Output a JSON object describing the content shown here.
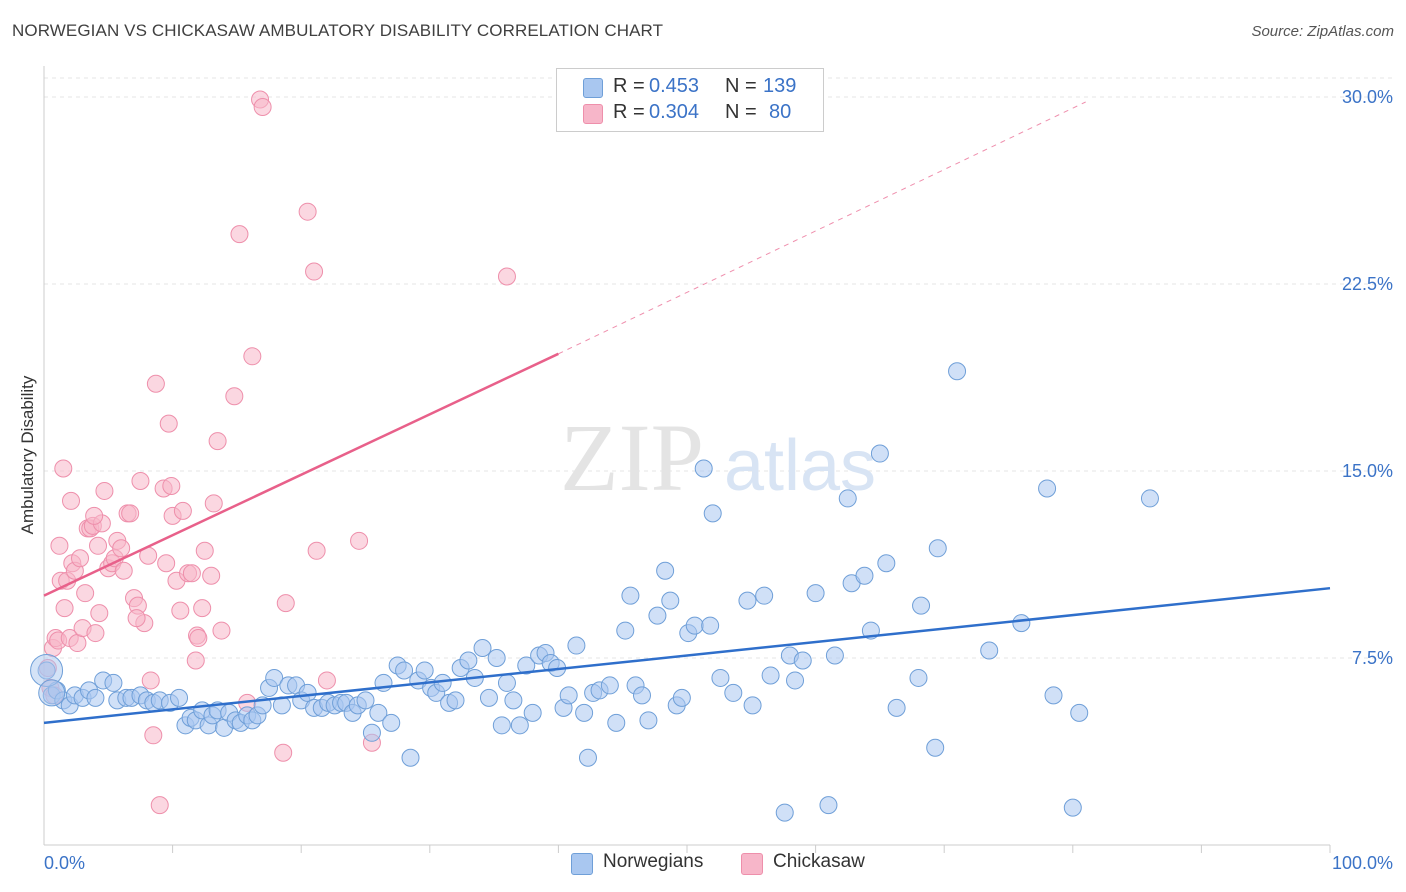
{
  "header": {
    "title": "NORWEGIAN VS CHICKASAW AMBULATORY DISABILITY CORRELATION CHART",
    "source": "Source: ZipAtlas.com"
  },
  "watermark": {
    "part1": "ZIP",
    "part2": "atlas"
  },
  "stats": {
    "rows": [
      {
        "r_label": "R =",
        "r_value": "0.453",
        "n_label": "N =",
        "n_value": "139",
        "color": "#a9c7f0"
      },
      {
        "r_label": "R =",
        "r_value": "0.304",
        "n_label": "N =",
        "n_value": "80",
        "color": "#f7b6c9"
      }
    ]
  },
  "legend": {
    "items": [
      {
        "label": "Norwegians",
        "color": "#a9c7f0"
      },
      {
        "label": "Chickasaw",
        "color": "#f7b6c9"
      }
    ]
  },
  "chart_data": {
    "type": "scatter",
    "title": "NORWEGIAN VS CHICKASAW AMBULATORY DISABILITY CORRELATION CHART",
    "xlabel": "",
    "ylabel": "Ambulatory Disability",
    "xlim": [
      0,
      100
    ],
    "ylim": [
      0,
      31
    ],
    "x_tick_labels": [
      "0.0%",
      "100.0%"
    ],
    "y_ticks": [
      7.5,
      15.0,
      22.5,
      30.0
    ],
    "y_tick_labels": [
      "7.5%",
      "15.0%",
      "22.5%",
      "30.0%"
    ],
    "grid": "horizontal-dashed",
    "legend_position": "bottom-center",
    "colors": {
      "norwegians_fill": "#a9c7f0",
      "norwegians_stroke": "#6f9fd8",
      "norwegians_line": "#2f6fcb",
      "chickasaw_fill": "#f7b6c9",
      "chickasaw_stroke": "#ee8fab",
      "chickasaw_line": "#e8608a",
      "tick_label": "#3b73c7"
    },
    "series": [
      {
        "name": "Norwegians",
        "trend": {
          "x": [
            0,
            100
          ],
          "y": [
            4.9,
            10.3
          ],
          "dashed_to": null
        },
        "points": [
          [
            0.2,
            7.0
          ],
          [
            0.6,
            6.0
          ],
          [
            1,
            6.2
          ],
          [
            1.5,
            5.8
          ],
          [
            2,
            5.6
          ],
          [
            2.4,
            6.0
          ],
          [
            3,
            5.9
          ],
          [
            3.5,
            6.2
          ],
          [
            4,
            5.9
          ],
          [
            4.6,
            6.6
          ],
          [
            5.4,
            6.5
          ],
          [
            5.7,
            5.8
          ],
          [
            6.4,
            5.9
          ],
          [
            6.8,
            5.9
          ],
          [
            7.5,
            6.0
          ],
          [
            8,
            5.8
          ],
          [
            8.5,
            5.7
          ],
          [
            9,
            5.8
          ],
          [
            9.8,
            5.7
          ],
          [
            10.5,
            5.9
          ],
          [
            11,
            4.8
          ],
          [
            11.4,
            5.1
          ],
          [
            11.8,
            5.0
          ],
          [
            12.3,
            5.4
          ],
          [
            12.8,
            4.8
          ],
          [
            13.1,
            5.2
          ],
          [
            13.5,
            5.4
          ],
          [
            14,
            4.7
          ],
          [
            14.4,
            5.3
          ],
          [
            14.9,
            5.0
          ],
          [
            15.3,
            4.9
          ],
          [
            15.8,
            5.2
          ],
          [
            16.2,
            5.0
          ],
          [
            16.6,
            5.2
          ],
          [
            17,
            5.6
          ],
          [
            17.5,
            6.3
          ],
          [
            17.9,
            6.7
          ],
          [
            18.5,
            5.6
          ],
          [
            19,
            6.4
          ],
          [
            19.6,
            6.4
          ],
          [
            20,
            5.8
          ],
          [
            20.5,
            6.1
          ],
          [
            21,
            5.5
          ],
          [
            21.6,
            5.5
          ],
          [
            22.1,
            5.7
          ],
          [
            22.6,
            5.6
          ],
          [
            23.1,
            5.7
          ],
          [
            23.5,
            5.7
          ],
          [
            24,
            5.3
          ],
          [
            24.4,
            5.6
          ],
          [
            25,
            5.8
          ],
          [
            25.5,
            4.5
          ],
          [
            26,
            5.3
          ],
          [
            26.4,
            6.5
          ],
          [
            27,
            4.9
          ],
          [
            27.5,
            7.2
          ],
          [
            28,
            7.0
          ],
          [
            28.5,
            3.5
          ],
          [
            29.1,
            6.6
          ],
          [
            29.6,
            7.0
          ],
          [
            30.1,
            6.3
          ],
          [
            30.5,
            6.1
          ],
          [
            31,
            6.5
          ],
          [
            31.5,
            5.7
          ],
          [
            32,
            5.8
          ],
          [
            32.4,
            7.1
          ],
          [
            33,
            7.4
          ],
          [
            33.5,
            6.7
          ],
          [
            34.1,
            7.9
          ],
          [
            34.6,
            5.9
          ],
          [
            35.2,
            7.5
          ],
          [
            35.6,
            4.8
          ],
          [
            36,
            6.5
          ],
          [
            36.5,
            5.8
          ],
          [
            37,
            4.8
          ],
          [
            37.5,
            7.2
          ],
          [
            38,
            5.3
          ],
          [
            38.5,
            7.6
          ],
          [
            39,
            7.7
          ],
          [
            39.4,
            7.3
          ],
          [
            39.9,
            7.1
          ],
          [
            40.4,
            5.5
          ],
          [
            40.8,
            6.0
          ],
          [
            41.4,
            8.0
          ],
          [
            42,
            5.3
          ],
          [
            42.3,
            3.5
          ],
          [
            42.7,
            6.1
          ],
          [
            43.2,
            6.2
          ],
          [
            44,
            6.4
          ],
          [
            44.5,
            4.9
          ],
          [
            45.2,
            8.6
          ],
          [
            45.6,
            10.0
          ],
          [
            46,
            6.4
          ],
          [
            46.5,
            6.0
          ],
          [
            47,
            5.0
          ],
          [
            47.7,
            9.2
          ],
          [
            48.3,
            11.0
          ],
          [
            48.7,
            9.8
          ],
          [
            49.2,
            5.6
          ],
          [
            49.6,
            5.9
          ],
          [
            50.1,
            8.5
          ],
          [
            50.6,
            8.8
          ],
          [
            51.3,
            15.1
          ],
          [
            51.8,
            8.8
          ],
          [
            52,
            13.3
          ],
          [
            52.6,
            6.7
          ],
          [
            53.6,
            6.1
          ],
          [
            54.7,
            9.8
          ],
          [
            55.1,
            5.6
          ],
          [
            56,
            10.0
          ],
          [
            56.5,
            6.8
          ],
          [
            57.6,
            1.3
          ],
          [
            58,
            7.6
          ],
          [
            58.4,
            6.6
          ],
          [
            59,
            7.4
          ],
          [
            60,
            10.1
          ],
          [
            61,
            1.6
          ],
          [
            61.5,
            7.6
          ],
          [
            62.5,
            13.9
          ],
          [
            62.8,
            10.5
          ],
          [
            63.8,
            10.8
          ],
          [
            64.3,
            8.6
          ],
          [
            65,
            15.7
          ],
          [
            65.5,
            11.3
          ],
          [
            66.3,
            5.5
          ],
          [
            68,
            6.7
          ],
          [
            68.2,
            9.6
          ],
          [
            69.3,
            3.9
          ],
          [
            69.5,
            11.9
          ],
          [
            71,
            19.0
          ],
          [
            73.5,
            7.8
          ],
          [
            76,
            8.9
          ],
          [
            78,
            14.3
          ],
          [
            78.5,
            6.0
          ],
          [
            80,
            1.5
          ],
          [
            80.5,
            5.3
          ],
          [
            86,
            13.9
          ]
        ]
      },
      {
        "name": "Chickasaw",
        "trend": {
          "x": [
            0,
            40
          ],
          "y": [
            10.0,
            19.7
          ],
          "dashed_to": [
            81,
            29.8
          ]
        },
        "points": [
          [
            0.3,
            7.1
          ],
          [
            0.5,
            6.3
          ],
          [
            0.7,
            7.9
          ],
          [
            0.9,
            8.3
          ],
          [
            1.1,
            8.2
          ],
          [
            1.3,
            10.6
          ],
          [
            1.6,
            9.5
          ],
          [
            1.8,
            10.6
          ],
          [
            2,
            8.3
          ],
          [
            2.2,
            11.3
          ],
          [
            2.4,
            11.0
          ],
          [
            2.6,
            8.1
          ],
          [
            2.8,
            11.5
          ],
          [
            3,
            8.7
          ],
          [
            3.2,
            10.1
          ],
          [
            3.4,
            12.7
          ],
          [
            3.6,
            12.7
          ],
          [
            3.8,
            12.8
          ],
          [
            4,
            8.5
          ],
          [
            4.2,
            12.0
          ],
          [
            4.3,
            9.3
          ],
          [
            4.5,
            12.9
          ],
          [
            4.7,
            14.2
          ],
          [
            5,
            11.1
          ],
          [
            5.3,
            11.3
          ],
          [
            5.5,
            11.5
          ],
          [
            5.7,
            12.2
          ],
          [
            6,
            11.9
          ],
          [
            6.2,
            11.0
          ],
          [
            6.5,
            13.3
          ],
          [
            6.7,
            13.3
          ],
          [
            7,
            9.9
          ],
          [
            7.3,
            9.6
          ],
          [
            7.5,
            14.6
          ],
          [
            7.8,
            8.9
          ],
          [
            8.1,
            11.6
          ],
          [
            8.3,
            6.6
          ],
          [
            8.5,
            4.4
          ],
          [
            8.7,
            18.5
          ],
          [
            9,
            1.6
          ],
          [
            9.3,
            14.3
          ],
          [
            9.5,
            11.3
          ],
          [
            9.7,
            16.9
          ],
          [
            10,
            13.2
          ],
          [
            10.3,
            10.6
          ],
          [
            10.6,
            9.4
          ],
          [
            10.8,
            13.4
          ],
          [
            11.2,
            10.9
          ],
          [
            11.5,
            10.9
          ],
          [
            11.8,
            7.4
          ],
          [
            11.9,
            8.4
          ],
          [
            12,
            8.3
          ],
          [
            12.3,
            9.5
          ],
          [
            12.5,
            11.8
          ],
          [
            13,
            10.8
          ],
          [
            13.2,
            13.7
          ],
          [
            13.5,
            16.2
          ],
          [
            13.8,
            8.6
          ],
          [
            14.8,
            18.0
          ],
          [
            15.2,
            24.5
          ],
          [
            15.8,
            5.7
          ],
          [
            16.2,
            19.6
          ],
          [
            16.8,
            29.9
          ],
          [
            17,
            29.6
          ],
          [
            18.6,
            3.7
          ],
          [
            18.8,
            9.7
          ],
          [
            20.5,
            25.4
          ],
          [
            21,
            23.0
          ],
          [
            21.2,
            11.8
          ],
          [
            22,
            6.6
          ],
          [
            25.5,
            4.1
          ],
          [
            24.5,
            12.2
          ],
          [
            36,
            22.8
          ],
          [
            1.5,
            15.1
          ],
          [
            2.1,
            13.8
          ],
          [
            0.8,
            6.0
          ],
          [
            1.2,
            12.0
          ],
          [
            3.9,
            13.2
          ],
          [
            7.2,
            9.1
          ],
          [
            9.9,
            14.4
          ]
        ]
      }
    ]
  }
}
